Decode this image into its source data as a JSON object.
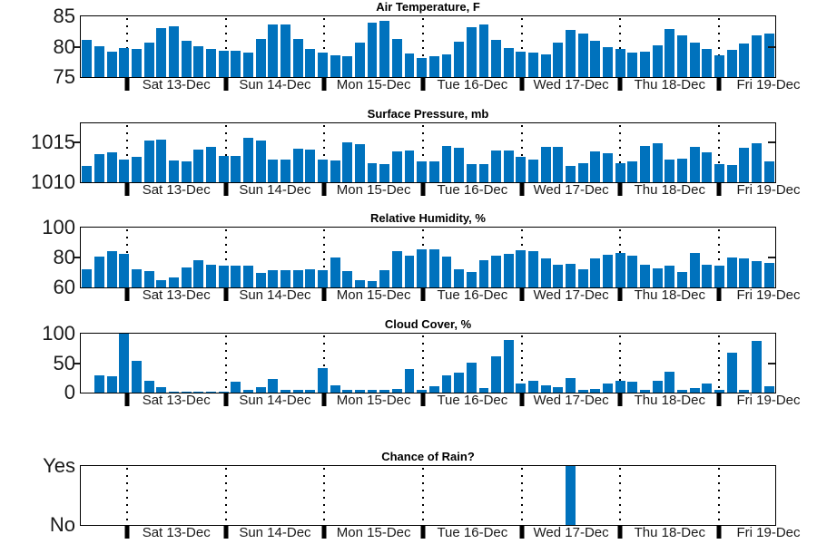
{
  "figure": {
    "bar_color": "#0072BD",
    "axis_color": "#000000",
    "background_color": "#FFFFFF",
    "tick_label_color": "#1a1a1a"
  },
  "chart_data": [
    {
      "type": "bar",
      "title": "Air Temperature, F",
      "categories": [
        "Sat 13-Dec",
        "Sun 14-Dec",
        "Mon 15-Dec",
        "Tue 16-Dec",
        "Wed 17-Dec",
        "Thu 18-Dec",
        "Fri 19-Dec"
      ],
      "ylim": [
        75,
        85
      ],
      "yticks": [
        {
          "label": "85",
          "value": 85
        },
        {
          "label": "80",
          "value": 80
        },
        {
          "label": "75",
          "value": 75
        }
      ],
      "grid": "vertical-dotted-day-lines",
      "values": [
        81.1,
        80.1,
        79.2,
        79.8,
        79.6,
        80.7,
        83.1,
        83.3,
        81.0,
        80.1,
        79.7,
        79.4,
        79.3,
        79.0,
        81.2,
        83.6,
        83.6,
        81.2,
        79.6,
        79.1,
        78.6,
        78.5,
        80.6,
        84.0,
        84.3,
        81.3,
        78.9,
        78.2,
        78.4,
        78.7,
        80.8,
        83.2,
        83.6,
        81.1,
        79.8,
        79.2,
        79.0,
        78.8,
        80.7,
        82.7,
        82.1,
        81.0,
        80.0,
        79.6,
        79.1,
        79.2,
        80.3,
        82.9,
        81.8,
        80.6,
        79.7,
        78.6,
        79.5,
        80.5,
        81.8,
        82.2
      ]
    },
    {
      "type": "bar",
      "title": "Surface Pressure, mb",
      "categories": [
        "Sat 13-Dec",
        "Sun 14-Dec",
        "Mon 15-Dec",
        "Tue 16-Dec",
        "Wed 17-Dec",
        "Thu 18-Dec",
        "Fri 19-Dec"
      ],
      "ylim": [
        1010,
        1017.4
      ],
      "yticks": [
        {
          "label": "1015",
          "value": 1015
        },
        {
          "label": "1010",
          "value": 1010
        }
      ],
      "grid": "vertical-dotted-day-lines",
      "values": [
        1012.0,
        1013.5,
        1013.8,
        1012.9,
        1013.2,
        1015.2,
        1015.3,
        1012.7,
        1012.6,
        1014.1,
        1014.4,
        1013.3,
        1013.3,
        1015.6,
        1015.2,
        1012.9,
        1012.9,
        1014.2,
        1014.1,
        1012.8,
        1012.7,
        1015.0,
        1014.8,
        1012.4,
        1012.3,
        1013.9,
        1014.0,
        1012.6,
        1012.6,
        1014.6,
        1014.3,
        1012.3,
        1012.3,
        1014.0,
        1014.0,
        1013.2,
        1012.9,
        1014.4,
        1014.4,
        1012.1,
        1012.4,
        1013.9,
        1013.6,
        1012.4,
        1012.6,
        1014.6,
        1014.9,
        1012.9,
        1013.0,
        1014.4,
        1013.8,
        1012.3,
        1012.2,
        1014.3,
        1014.9,
        1012.6
      ]
    },
    {
      "type": "bar",
      "title": "Relative Humidity, %",
      "categories": [
        "Sat 13-Dec",
        "Sun 14-Dec",
        "Mon 15-Dec",
        "Tue 16-Dec",
        "Wed 17-Dec",
        "Thu 18-Dec",
        "Fri 19-Dec"
      ],
      "ylim": [
        60,
        100
      ],
      "yticks": [
        {
          "label": "100",
          "value": 100
        },
        {
          "label": "80",
          "value": 80
        },
        {
          "label": "60",
          "value": 60
        }
      ],
      "grid": "vertical-dotted-day-lines",
      "values": [
        72,
        80.4,
        84.4,
        82.4,
        72,
        71,
        65,
        66.5,
        73.5,
        78,
        75,
        74.3,
        74.8,
        74.3,
        70,
        71.5,
        71.7,
        71.7,
        72,
        71.7,
        79.8,
        71,
        65,
        64,
        71.5,
        84,
        81.4,
        85.7,
        85.3,
        80.4,
        72,
        70.5,
        78,
        81.2,
        82.2,
        85.1,
        84.2,
        79.6,
        75,
        76,
        72.3,
        79.6,
        81.8,
        82.8,
        81.4,
        75.4,
        72.5,
        74.5,
        70.5,
        83,
        74.9,
        74.5,
        80,
        79.5,
        77.5,
        76.5
      ]
    },
    {
      "type": "bar",
      "title": "Cloud Cover, %",
      "categories": [
        "Sat 13-Dec",
        "Sun 14-Dec",
        "Mon 15-Dec",
        "Tue 16-Dec",
        "Wed 17-Dec",
        "Thu 18-Dec",
        "Fri 19-Dec"
      ],
      "ylim": [
        0,
        100
      ],
      "yticks": [
        {
          "label": "100",
          "value": 100
        },
        {
          "label": "50",
          "value": 50
        },
        {
          "label": "0",
          "value": 0
        }
      ],
      "grid": "vertical-dotted-day-lines",
      "values": [
        0,
        29,
        28,
        100,
        54,
        20,
        9,
        1,
        2,
        1,
        1,
        1,
        18,
        4,
        10,
        23,
        5,
        5,
        5,
        42,
        13,
        5,
        5,
        5,
        5,
        6,
        40,
        5,
        11,
        30,
        34,
        51,
        7,
        62,
        89,
        16,
        20,
        12,
        10,
        25,
        4,
        6,
        16,
        20,
        18,
        4,
        20,
        36,
        5,
        7,
        15,
        4,
        67,
        4,
        87,
        11
      ]
    },
    {
      "type": "bar",
      "title": "Chance of Rain?",
      "categories": [
        "Sat 13-Dec",
        "Sun 14-Dec",
        "Mon 15-Dec",
        "Tue 16-Dec",
        "Wed 17-Dec",
        "Thu 18-Dec",
        "Fri 19-Dec"
      ],
      "ylim": [
        0,
        1
      ],
      "yticks": [
        {
          "label": "Yes",
          "value": 1
        },
        {
          "label": "No",
          "value": 0
        }
      ],
      "grid": "vertical-dotted-day-lines",
      "values": [
        0,
        0,
        0,
        0,
        0,
        0,
        0,
        0,
        0,
        0,
        0,
        0,
        0,
        0,
        0,
        0,
        0,
        0,
        0,
        0,
        0,
        0,
        0,
        0,
        0,
        0,
        0,
        0,
        0,
        0,
        0,
        0,
        0,
        0,
        0,
        0,
        0,
        0,
        0,
        1,
        0,
        0,
        0,
        0,
        0,
        0,
        0,
        0,
        0,
        0,
        0,
        0,
        0,
        0,
        0,
        0
      ]
    }
  ]
}
